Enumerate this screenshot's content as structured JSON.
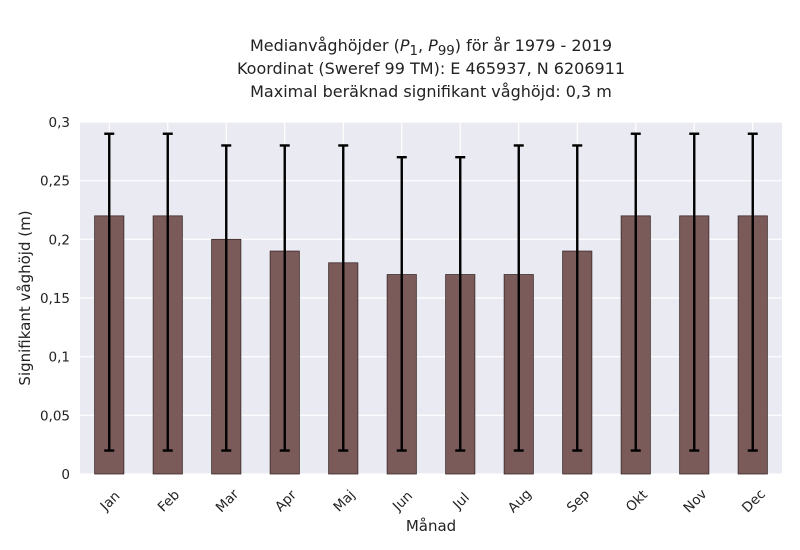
{
  "chart_data": {
    "type": "bar",
    "title_lines": [
      "Medianvåghöjder (P1, P99) för år 1979 - 2019",
      "Koordinat (Sweref 99 TM): E 465937, N 6206911",
      "Maximal beräknad signifikant våghöjd: 0,3 m"
    ],
    "xlabel": "Månad",
    "ylabel": "Signifikant våghöjd (m)",
    "categories": [
      "Jan",
      "Feb",
      "Mar",
      "Apr",
      "Maj",
      "Jun",
      "Jul",
      "Aug",
      "Sep",
      "Okt",
      "Nov",
      "Dec"
    ],
    "values": [
      0.22,
      0.22,
      0.2,
      0.19,
      0.18,
      0.17,
      0.17,
      0.17,
      0.19,
      0.22,
      0.22,
      0.22
    ],
    "err_low": [
      0.02,
      0.02,
      0.02,
      0.02,
      0.02,
      0.02,
      0.02,
      0.02,
      0.02,
      0.02,
      0.02,
      0.02
    ],
    "err_high": [
      0.29,
      0.29,
      0.28,
      0.28,
      0.28,
      0.27,
      0.27,
      0.28,
      0.28,
      0.29,
      0.29,
      0.29
    ],
    "ylim": [
      0,
      0.3
    ],
    "yticks": [
      "0",
      "0,05",
      "0,1",
      "0,15",
      "0,2",
      "0,25",
      "0,3"
    ],
    "ytick_values": [
      0,
      0.05,
      0.1,
      0.15,
      0.2,
      0.25,
      0.3
    ],
    "grid": true,
    "colors": {
      "bar": "#7b5a5a",
      "bar_edge": "#3a2a2a",
      "plot_bg": "#eaeaf2",
      "grid": "#ffffff",
      "error": "#000000"
    }
  }
}
